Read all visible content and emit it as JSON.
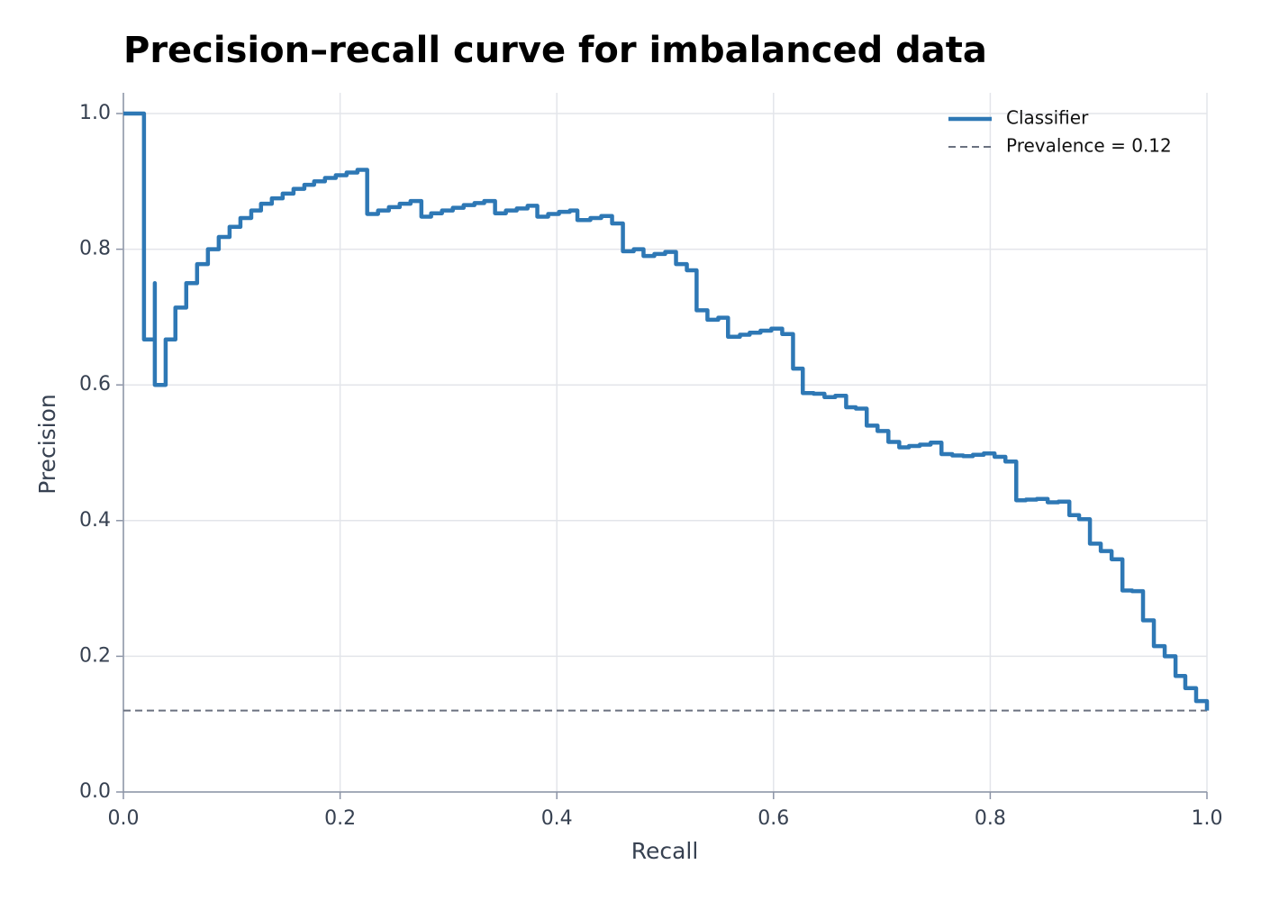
{
  "chart_data": {
    "type": "line",
    "drawstyle": "steps-post",
    "title": "Precision–recall curve for imbalanced data",
    "x_label": "Recall",
    "y_label": "Precision",
    "xlim": [
      0,
      1
    ],
    "ylim": [
      0,
      1
    ],
    "xticks": [
      {
        "value": 0,
        "label": "0.0"
      },
      0.2,
      0.4,
      0.6,
      0.8,
      {
        "value": 1,
        "label": "1.0"
      }
    ],
    "yticks": [
      {
        "value": 0,
        "label": "0.0"
      },
      0.2,
      0.4,
      0.6,
      0.8,
      {
        "value": 1,
        "label": "1.0"
      }
    ],
    "grid": true,
    "legend": "upper right",
    "series": [
      {
        "name": "Classifier",
        "color": "#2e78b5",
        "x": [
          0,
          0.019,
          0.029,
          0.029,
          0.039,
          0.048,
          0.058,
          0.068,
          0.078,
          0.088,
          0.098,
          0.108,
          0.118,
          0.127,
          0.137,
          0.147,
          0.157,
          0.167,
          0.176,
          0.186,
          0.196,
          0.206,
          0.216,
          0.225,
          0.235,
          0.245,
          0.255,
          0.265,
          0.275,
          0.284,
          0.294,
          0.304,
          0.314,
          0.324,
          0.333,
          0.343,
          0.353,
          0.363,
          0.373,
          0.382,
          0.392,
          0.402,
          0.412,
          0.419,
          0.431,
          0.441,
          0.451,
          0.461,
          0.471,
          0.48,
          0.49,
          0.5,
          0.51,
          0.52,
          0.529,
          0.539,
          0.549,
          0.558,
          0.569,
          0.578,
          0.588,
          0.598,
          0.608,
          0.618,
          0.627,
          0.637,
          0.647,
          0.657,
          0.667,
          0.676,
          0.686,
          0.696,
          0.706,
          0.716,
          0.725,
          0.735,
          0.745,
          0.755,
          0.765,
          0.775,
          0.784,
          0.794,
          0.804,
          0.814,
          0.824,
          0.833,
          0.843,
          0.853,
          0.863,
          0.873,
          0.882,
          0.892,
          0.902,
          0.912,
          0.922,
          0.931,
          0.941,
          0.951,
          0.961,
          0.971,
          0.98,
          0.99,
          1.0
        ],
        "values": [
          1,
          0.667,
          0.75,
          0.6,
          0.667,
          0.714,
          0.75,
          0.778,
          0.8,
          0.818,
          0.833,
          0.846,
          0.857,
          0.867,
          0.875,
          0.882,
          0.889,
          0.895,
          0.9,
          0.905,
          0.909,
          0.913,
          0.917,
          0.852,
          0.857,
          0.862,
          0.867,
          0.871,
          0.848,
          0.853,
          0.857,
          0.861,
          0.865,
          0.868,
          0.871,
          0.853,
          0.857,
          0.86,
          0.864,
          0.848,
          0.852,
          0.855,
          0.857,
          0.843,
          0.846,
          0.849,
          0.838,
          0.797,
          0.8,
          0.79,
          0.793,
          0.796,
          0.778,
          0.769,
          0.71,
          0.696,
          0.699,
          0.671,
          0.674,
          0.677,
          0.68,
          0.683,
          0.675,
          0.624,
          0.588,
          0.587,
          0.582,
          0.584,
          0.567,
          0.565,
          0.54,
          0.532,
          0.516,
          0.508,
          0.51,
          0.512,
          0.515,
          0.498,
          0.496,
          0.495,
          0.497,
          0.499,
          0.494,
          0.487,
          0.43,
          0.431,
          0.432,
          0.427,
          0.428,
          0.408,
          0.402,
          0.366,
          0.355,
          0.343,
          0.297,
          0.296,
          0.253,
          0.215,
          0.2,
          0.171,
          0.153,
          0.134,
          0.12
        ]
      }
    ],
    "reference_line": {
      "name": "Prevalence = 0.12",
      "value": 0.12,
      "color": "#6b7280"
    }
  }
}
